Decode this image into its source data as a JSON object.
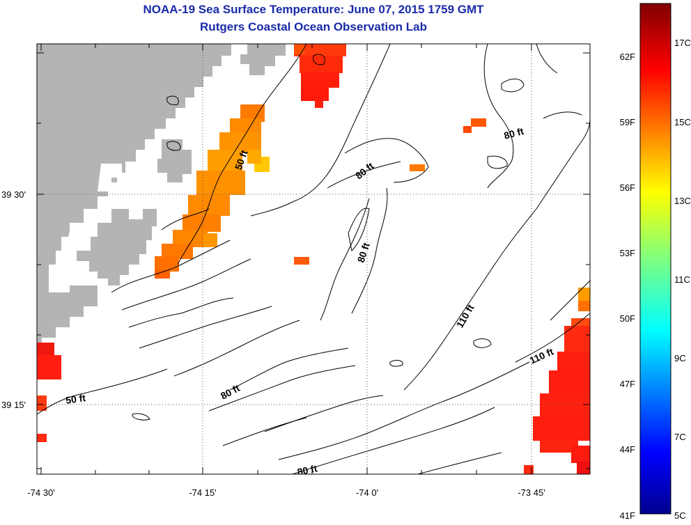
{
  "title": "NOAA-19 Sea Surface Temperature:  June 07, 2015 1759 GMT",
  "subtitle": "Rutgers Coastal Ocean Observation Lab",
  "x_ticks": [
    "-74 30'",
    "-74 15'",
    "-74 0'",
    "-73 45'"
  ],
  "y_ticks": [
    "39 30'",
    "39 15'"
  ],
  "colorbar_f": [
    "62F",
    "59F",
    "56F",
    "53F",
    "50F",
    "47F",
    "44F",
    "41F"
  ],
  "colorbar_c": [
    "17C",
    "15C",
    "13C",
    "11C",
    "9C",
    "7C",
    "5C"
  ],
  "contour_labels": [
    "50 ft",
    "80 ft",
    "80 ft",
    "80 ft",
    "80 ft",
    "110 ft",
    "110 ft",
    "80 ft",
    "50 ft"
  ],
  "colors": {
    "land": "#b4b4b4",
    "title": "#1a2aa8",
    "grid": "#555555"
  },
  "colorbar_range_c": [
    5,
    18
  ],
  "colorbar_colormap": "jet"
}
